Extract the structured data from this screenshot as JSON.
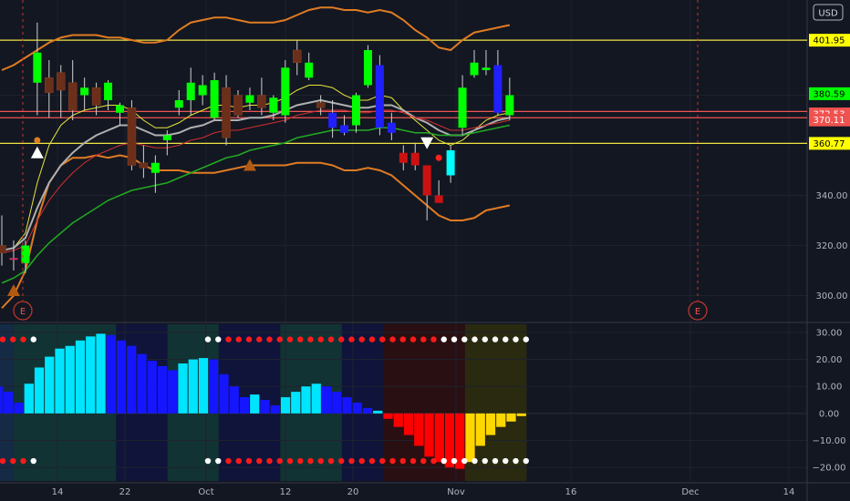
{
  "currency_label": "USD",
  "earnings_marker": "E",
  "colors": {
    "background": "#131722",
    "grid": "#1e222d",
    "axis_text": "#b2b5be",
    "bull": "#00ff00",
    "bear": "#6b2f1a",
    "strong_bear": "#cc1111",
    "rev_up": "#00ffff",
    "rev_down": "#2020ff",
    "band": "#e07b22",
    "yellow_line": "#f0e442",
    "red_line": "#ef5350",
    "ema_short": "#e6e63a",
    "ema_mid": "#b0b0b0",
    "ema_long": "#d03030",
    "ema_trend": "#22aa22",
    "hist_cyan": "#00e5ff",
    "hist_blue": "#1515ff",
    "hist_red": "#ff0000",
    "hist_yellow": "#ffd700",
    "dot_white": "#ffffff",
    "dot_red": "#ff1a1a",
    "marker_triangle": "#b35a12"
  },
  "chart_data": [
    {
      "type": "candlestick",
      "title": "",
      "x_tick_labels": [
        "14",
        "22",
        "Oct",
        "12",
        "20",
        "Nov",
        "16",
        "Dec",
        "14"
      ],
      "y_tick_labels": [
        300,
        320,
        340,
        360.77,
        370.11,
        372.53,
        380.59,
        401.95
      ],
      "ylim": [
        290,
        418
      ],
      "price_labels": [
        {
          "value": 401.95,
          "label": "401.95",
          "color": "#ffff00",
          "text_color": "#000000"
        },
        {
          "value": 380.59,
          "label": "380.59",
          "color": "#00ff00",
          "text_color": "#000000"
        },
        {
          "value": 372.53,
          "label": "372.53",
          "color": "#ef5350",
          "text_color": "#ffffff"
        },
        {
          "value": 370.11,
          "label": "370.11",
          "color": "#ef5350",
          "text_color": "#ffffff"
        },
        {
          "value": 360.77,
          "label": "360.77",
          "color": "#ffff00",
          "text_color": "#000000"
        }
      ],
      "horizontal_lines": [
        {
          "value": 401.95,
          "color": "#f0e442"
        },
        {
          "value": 373.5,
          "color": "#ef5350"
        },
        {
          "value": 371.0,
          "color": "#ef5350"
        },
        {
          "value": 360.77,
          "color": "#f0e442"
        }
      ],
      "candles": [
        {
          "o": 320,
          "h": 332,
          "l": 312,
          "c": 317,
          "col": "bear"
        },
        {
          "o": 315,
          "h": 322,
          "l": 310,
          "c": 315,
          "col": "pink"
        },
        {
          "o": 313,
          "h": 322,
          "l": 309,
          "c": 320,
          "col": "bull"
        },
        {
          "o": 385,
          "h": 409,
          "l": 372,
          "c": 397,
          "col": "bull"
        },
        {
          "o": 387,
          "h": 394,
          "l": 371,
          "c": 381,
          "col": "bear"
        },
        {
          "o": 389,
          "h": 392,
          "l": 371,
          "c": 382,
          "col": "bear"
        },
        {
          "o": 385,
          "h": 394,
          "l": 370,
          "c": 374,
          "col": "bear"
        },
        {
          "o": 380,
          "h": 387,
          "l": 374,
          "c": 383,
          "col": "bull"
        },
        {
          "o": 383,
          "h": 385,
          "l": 372,
          "c": 376,
          "col": "bear"
        },
        {
          "o": 378,
          "h": 386,
          "l": 374,
          "c": 385,
          "col": "bull"
        },
        {
          "o": 373,
          "h": 377,
          "l": 368,
          "c": 376,
          "col": "bull"
        },
        {
          "o": 375,
          "h": 378,
          "l": 350,
          "c": 352,
          "col": "bear"
        },
        {
          "o": 353,
          "h": 360,
          "l": 347,
          "c": 351,
          "col": "bear"
        },
        {
          "o": 349,
          "h": 356,
          "l": 341,
          "c": 353,
          "col": "bull"
        },
        {
          "o": 362,
          "h": 366,
          "l": 356,
          "c": 364,
          "col": "bull"
        },
        {
          "o": 375,
          "h": 382,
          "l": 372,
          "c": 378,
          "col": "bull"
        },
        {
          "o": 378,
          "h": 391,
          "l": 372,
          "c": 385,
          "col": "bull"
        },
        {
          "o": 380,
          "h": 388,
          "l": 376,
          "c": 384,
          "col": "bull"
        },
        {
          "o": 371,
          "h": 389,
          "l": 370,
          "c": 386,
          "col": "bull"
        },
        {
          "o": 383,
          "h": 388,
          "l": 360,
          "c": 363,
          "col": "bear"
        },
        {
          "o": 380,
          "h": 382,
          "l": 371,
          "c": 372,
          "col": "bear"
        },
        {
          "o": 377,
          "h": 383,
          "l": 374,
          "c": 380,
          "col": "bull"
        },
        {
          "o": 380,
          "h": 387,
          "l": 372,
          "c": 375,
          "col": "bear"
        },
        {
          "o": 373,
          "h": 380,
          "l": 370,
          "c": 379,
          "col": "bull"
        },
        {
          "o": 372,
          "h": 394,
          "l": 369,
          "c": 391,
          "col": "bull"
        },
        {
          "o": 398,
          "h": 402,
          "l": 388,
          "c": 393,
          "col": "bear"
        },
        {
          "o": 393,
          "h": 397,
          "l": 386,
          "c": 387,
          "col": "bull"
        },
        {
          "o": 377,
          "h": 380,
          "l": 372,
          "c": 375,
          "col": "bear"
        },
        {
          "o": 373,
          "h": 378,
          "l": 363,
          "c": 367,
          "col": "blue"
        },
        {
          "o": 368,
          "h": 372,
          "l": 364,
          "c": 365,
          "col": "blue"
        },
        {
          "o": 368,
          "h": 381,
          "l": 365,
          "c": 380,
          "col": "bull"
        },
        {
          "o": 398,
          "h": 400,
          "l": 383,
          "c": 384,
          "col": "bull"
        },
        {
          "o": 392,
          "h": 396,
          "l": 364,
          "c": 367,
          "col": "blue"
        },
        {
          "o": 369,
          "h": 373,
          "l": 362,
          "c": 365,
          "col": "blue"
        },
        {
          "o": 357,
          "h": 360,
          "l": 350,
          "c": 353,
          "col": "red"
        },
        {
          "o": 357,
          "h": 361,
          "l": 350,
          "c": 352,
          "col": "red"
        },
        {
          "o": 352,
          "h": 352,
          "l": 330,
          "c": 340,
          "col": "red"
        },
        {
          "o": 340,
          "h": 346,
          "l": 338,
          "c": 337,
          "col": "red"
        },
        {
          "o": 348,
          "h": 360,
          "l": 345,
          "c": 358,
          "col": "cyan"
        },
        {
          "o": 367,
          "h": 388,
          "l": 364,
          "c": 383,
          "col": "bull"
        },
        {
          "o": 388,
          "h": 398,
          "l": 387,
          "c": 393,
          "col": "bull"
        },
        {
          "o": 390,
          "h": 398,
          "l": 388,
          "c": 391,
          "col": "bull"
        },
        {
          "o": 392,
          "h": 398,
          "l": 372,
          "c": 373,
          "col": "blue"
        },
        {
          "o": 372,
          "h": 387,
          "l": 370,
          "c": 380,
          "col": "bull"
        }
      ],
      "series": [
        {
          "kind": "band_upper",
          "values": [
            390,
            392,
            395,
            398,
            401,
            403,
            404,
            404,
            404,
            403,
            403,
            402,
            401,
            401,
            402,
            406,
            409,
            410,
            411,
            411,
            410,
            409,
            409,
            409,
            410,
            412,
            414,
            415,
            415,
            414,
            414,
            413,
            414,
            413,
            410,
            406,
            403,
            399,
            398,
            402,
            405,
            406,
            407,
            408
          ]
        },
        {
          "kind": "band_lower",
          "values": [
            295,
            300,
            310,
            330,
            345,
            352,
            355,
            355,
            356,
            355,
            356,
            355,
            352,
            350,
            350,
            350,
            349,
            349,
            349,
            350,
            351,
            352,
            352,
            352,
            352,
            353,
            353,
            353,
            352,
            350,
            350,
            351,
            350,
            348,
            344,
            340,
            336,
            332,
            330,
            330,
            331,
            334,
            335,
            336
          ]
        },
        {
          "kind": "ema_short",
          "values": [
            318,
            319,
            325,
            345,
            360,
            368,
            372,
            374,
            375,
            376,
            376,
            374,
            370,
            367,
            367,
            369,
            372,
            374,
            376,
            376,
            375,
            376,
            376,
            377,
            379,
            382,
            384,
            384,
            383,
            380,
            378,
            378,
            380,
            379,
            374,
            370,
            366,
            362,
            360,
            362,
            366,
            370,
            372,
            373
          ]
        },
        {
          "kind": "ema_mid",
          "values": [
            318,
            319,
            323,
            335,
            345,
            352,
            357,
            361,
            364,
            366,
            368,
            368,
            366,
            364,
            364,
            365,
            367,
            368,
            370,
            370,
            370,
            371,
            371,
            372,
            374,
            376,
            377,
            378,
            377,
            376,
            375,
            375,
            376,
            376,
            374,
            371,
            369,
            366,
            364,
            364,
            366,
            368,
            370,
            371
          ]
        },
        {
          "kind": "ema_long",
          "values": [
            317,
            318,
            320,
            330,
            338,
            344,
            349,
            353,
            356,
            358,
            360,
            361,
            360,
            359,
            359,
            360,
            362,
            363,
            365,
            366,
            366,
            367,
            368,
            369,
            370,
            372,
            373,
            374,
            374,
            374,
            373,
            373,
            374,
            374,
            373,
            371,
            370,
            368,
            366,
            366,
            367,
            368,
            369,
            370
          ]
        },
        {
          "kind": "ema_trend",
          "values": [
            305,
            307,
            310,
            316,
            321,
            325,
            329,
            332,
            335,
            338,
            340,
            342,
            343,
            344,
            345,
            347,
            349,
            351,
            353,
            355,
            356,
            358,
            359,
            360,
            361,
            363,
            364,
            365,
            366,
            366,
            366,
            366,
            367,
            367,
            366,
            365,
            365,
            364,
            364,
            364,
            365,
            366,
            367,
            368
          ]
        }
      ],
      "signal_markers": [
        {
          "index": 3,
          "shape": "triangle-up",
          "color": "white",
          "value": 357
        },
        {
          "index": 21,
          "shape": "triangle-up",
          "color": "orange",
          "value": 352
        },
        {
          "index": 36,
          "shape": "triangle-down",
          "color": "white",
          "value": 361
        },
        {
          "index": 1,
          "shape": "triangle-up",
          "color": "orange",
          "value": 302
        }
      ]
    },
    {
      "type": "bar",
      "title": "",
      "y_tick_labels": [
        "30.00",
        "20.00",
        "10.00",
        "0.00",
        "−10.00",
        "−20.00"
      ],
      "ylim": [
        -25,
        33
      ],
      "values": [
        10,
        8,
        4,
        11,
        17,
        21,
        24,
        25,
        27,
        28.5,
        29.5,
        29,
        27,
        25,
        22,
        19.5,
        17.5,
        16,
        18.5,
        20,
        20.5,
        20,
        14.5,
        10,
        6,
        7,
        5,
        3,
        6,
        8,
        10,
        11,
        10,
        8,
        6,
        4,
        2,
        1,
        -2,
        -5,
        -8,
        -12,
        -16,
        -18,
        -20,
        -20.5,
        -18,
        -12,
        -8,
        -5,
        -3,
        -1
      ],
      "colors": [
        "blue",
        "blue",
        "blue",
        "cyan",
        "cyan",
        "cyan",
        "cyan",
        "cyan",
        "cyan",
        "cyan",
        "cyan",
        "blue",
        "blue",
        "blue",
        "blue",
        "blue",
        "blue",
        "blue",
        "cyan",
        "cyan",
        "cyan",
        "blue",
        "blue",
        "blue",
        "blue",
        "cyan",
        "blue",
        "blue",
        "cyan",
        "cyan",
        "cyan",
        "cyan",
        "blue",
        "blue",
        "blue",
        "blue",
        "blue",
        "cyan",
        "red",
        "red",
        "red",
        "red",
        "red",
        "red",
        "red",
        "red",
        "yellow",
        "yellow",
        "yellow",
        "yellow",
        "yellow",
        "yellow"
      ],
      "dots": [
        "red",
        "red",
        "red",
        "white",
        "none",
        "none",
        "none",
        "none",
        "none",
        "none",
        "none",
        "none",
        "none",
        "none",
        "none",
        "none",
        "none",
        "none",
        "none",
        "none",
        "white",
        "white",
        "red",
        "red",
        "red",
        "red",
        "red",
        "red",
        "red",
        "red",
        "red",
        "red",
        "red",
        "red",
        "red",
        "red",
        "red",
        "red",
        "red",
        "red",
        "red",
        "red",
        "red",
        "white",
        "white",
        "white",
        "white",
        "white",
        "white",
        "white",
        "white",
        "white"
      ]
    }
  ]
}
